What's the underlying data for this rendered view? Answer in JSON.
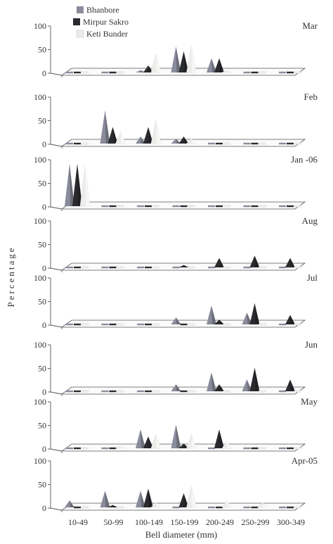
{
  "chart_data": {
    "type": "bar",
    "variant": "3d-cone",
    "ylabel": "Percentage",
    "xlabel": "Bell diameter (mm)",
    "categories": [
      "10-49",
      "50-99",
      "100-149",
      "150-199",
      "200-249",
      "250-299",
      "300-349"
    ],
    "series_names": [
      "Bhanbore",
      "Mirpur Sakro",
      "Keti Bunder"
    ],
    "colors": {
      "Bhanbore": "#8a8c9c",
      "Mirpur Sakro": "#2b2b2f",
      "Keti Bunder": "#ececea"
    },
    "legend": {
      "position": "top-left",
      "entries": [
        "Bhanbore",
        "Mirpur Sakro",
        "Keti Bunder"
      ]
    },
    "ylim": [
      0,
      100
    ],
    "yticks": [
      "0",
      "50",
      "100"
    ],
    "grid": false,
    "panels": [
      {
        "title": "Mar",
        "series": [
          {
            "name": "Bhanbore",
            "values": [
              0,
              0,
              5,
              55,
              30,
              0,
              0
            ]
          },
          {
            "name": "Mirpur Sakro",
            "values": [
              0,
              0,
              15,
              45,
              30,
              0,
              0
            ]
          },
          {
            "name": "Keti Bunder",
            "values": [
              0,
              0,
              40,
              55,
              5,
              0,
              0
            ]
          }
        ]
      },
      {
        "title": "Feb",
        "series": [
          {
            "name": "Bhanbore",
            "values": [
              0,
              70,
              15,
              10,
              0,
              0,
              0
            ]
          },
          {
            "name": "Mirpur Sakro",
            "values": [
              0,
              35,
              35,
              15,
              0,
              0,
              0
            ]
          },
          {
            "name": "Keti Bunder",
            "values": [
              0,
              25,
              50,
              10,
              0,
              0,
              0
            ]
          }
        ]
      },
      {
        "title": "Jan  -06",
        "series": [
          {
            "name": "Bhanbore",
            "values": [
              90,
              0,
              0,
              0,
              0,
              0,
              0
            ]
          },
          {
            "name": "Mirpur Sakro",
            "values": [
              90,
              0,
              0,
              0,
              0,
              0,
              0
            ]
          },
          {
            "name": "Keti Bunder",
            "values": [
              85,
              0,
              0,
              0,
              0,
              0,
              0
            ]
          }
        ]
      },
      {
        "title": "Aug",
        "series": [
          {
            "name": "Bhanbore",
            "values": [
              0,
              0,
              0,
              0,
              0,
              0,
              0
            ]
          },
          {
            "name": "Mirpur Sakro",
            "values": [
              0,
              0,
              0,
              5,
              20,
              25,
              20
            ]
          },
          {
            "name": "Keti Bunder",
            "values": [
              0,
              0,
              0,
              0,
              0,
              0,
              0
            ]
          }
        ]
      },
      {
        "title": "Jul",
        "series": [
          {
            "name": "Bhanbore",
            "values": [
              0,
              0,
              0,
              15,
              40,
              25,
              0
            ]
          },
          {
            "name": "Mirpur Sakro",
            "values": [
              0,
              0,
              0,
              0,
              10,
              45,
              20
            ]
          },
          {
            "name": "Keti Bunder",
            "values": [
              0,
              0,
              0,
              0,
              0,
              0,
              0
            ]
          }
        ]
      },
      {
        "title": "Jun",
        "series": [
          {
            "name": "Bhanbore",
            "values": [
              0,
              0,
              0,
              15,
              40,
              25,
              0
            ]
          },
          {
            "name": "Mirpur Sakro",
            "values": [
              0,
              0,
              0,
              0,
              15,
              50,
              25
            ]
          },
          {
            "name": "Keti Bunder",
            "values": [
              0,
              0,
              0,
              0,
              0,
              0,
              0
            ]
          }
        ]
      },
      {
        "title": "May",
        "series": [
          {
            "name": "Bhanbore",
            "values": [
              0,
              0,
              40,
              50,
              0,
              0,
              0
            ]
          },
          {
            "name": "Mirpur Sakro",
            "values": [
              0,
              0,
              25,
              10,
              40,
              0,
              0
            ]
          },
          {
            "name": "Keti Bunder",
            "values": [
              0,
              5,
              30,
              30,
              15,
              0,
              0
            ]
          }
        ]
      },
      {
        "title": "Apr-05",
        "series": [
          {
            "name": "Bhanbore",
            "values": [
              15,
              35,
              35,
              0,
              0,
              0,
              0
            ]
          },
          {
            "name": "Mirpur Sakro",
            "values": [
              0,
              5,
              40,
              30,
              0,
              0,
              0
            ]
          },
          {
            "name": "Keti Bunder",
            "values": [
              0,
              0,
              10,
              45,
              15,
              10,
              0
            ]
          }
        ]
      }
    ]
  }
}
